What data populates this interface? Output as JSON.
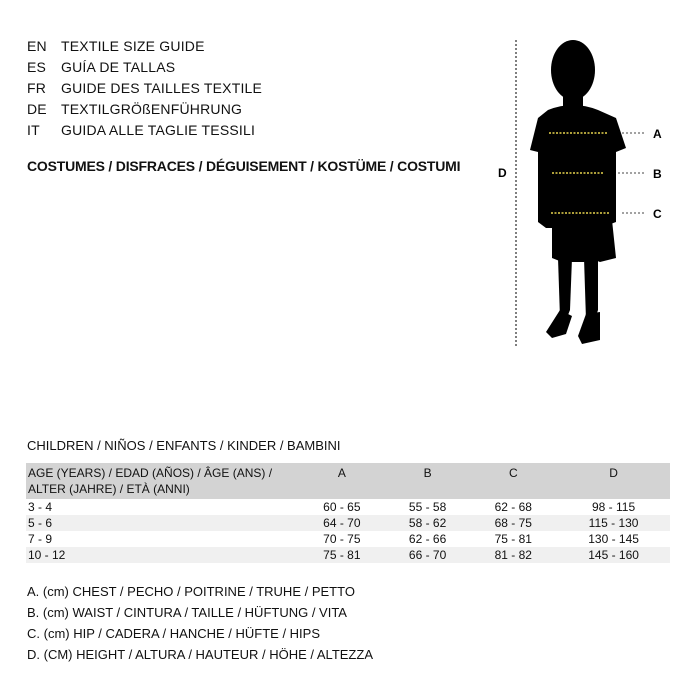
{
  "languages": [
    {
      "code": "EN",
      "text": "TEXTILE SIZE GUIDE"
    },
    {
      "code": "ES",
      "text": "GUÍA DE TALLAS"
    },
    {
      "code": "FR",
      "text": "GUIDE DES TAILLES TEXTILE"
    },
    {
      "code": "DE",
      "text": "TEXTILGRÖßENFÜHRUNG"
    },
    {
      "code": "IT",
      "text": "GUIDA ALLE TAGLIE TESSILI"
    }
  ],
  "category": "COSTUMES / DISFRACES / DÉGUISEMENT / KOSTÜME / COSTUMI",
  "figure": {
    "labels": {
      "a": "A",
      "b": "B",
      "c": "C",
      "d": "D"
    },
    "measure_line_color": "#e8d44d"
  },
  "table": {
    "title": "CHILDREN / NIÑOS / ENFANTS / KINDER / BAMBINI",
    "headers": {
      "age_line1": "AGE (YEARS) / EDAD (AÑOS) / ÂGE (ANS) /",
      "age_line2": "ALTER (JAHRE) / ETÀ (ANNI)",
      "a": "A",
      "b": "B",
      "c": "C",
      "d": "D"
    },
    "rows": [
      [
        "3 - 4",
        "60 - 65",
        "55 - 58",
        "62 - 68",
        "98 - 115"
      ],
      [
        "5 - 6",
        "64 - 70",
        "58 - 62",
        "68 - 75",
        "115 - 130"
      ],
      [
        "7 - 9",
        "70 - 75",
        "62 - 66",
        "75 - 81",
        "130 - 145"
      ],
      [
        "10 - 12",
        "75 - 81",
        "66 - 70",
        "81 - 82",
        "145 - 160"
      ]
    ]
  },
  "legend": [
    "A. (cm) CHEST / PECHO / POITRINE / TRUHE / PETTO",
    "B. (cm) WAIST / CINTURA / TAILLE / HÜFTUNG / VITA",
    "C. (cm) HIP / CADERA / HANCHE / HÜFTE / HIPS",
    "D. (CM) HEIGHT / ALTURA / HAUTEUR / HÖHE / ALTEZZA"
  ]
}
